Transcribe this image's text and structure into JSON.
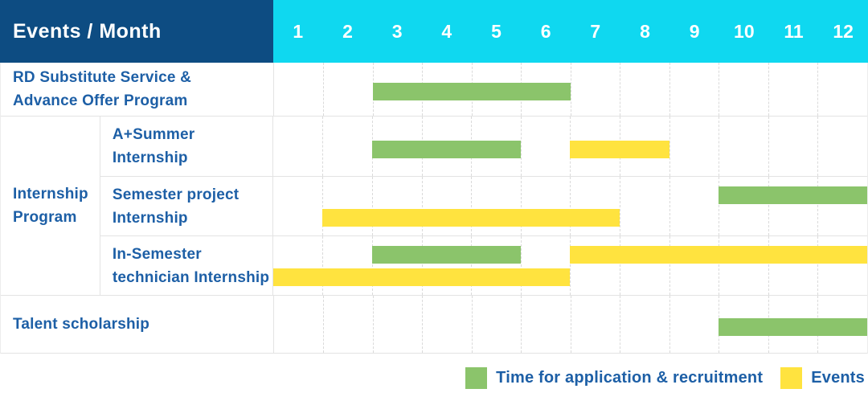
{
  "header": {
    "title": "Events / Month",
    "months": [
      "1",
      "2",
      "3",
      "4",
      "5",
      "6",
      "7",
      "8",
      "9",
      "10",
      "11",
      "12"
    ]
  },
  "colors": {
    "header_navy": "#0D4C82",
    "header_cyan": "#0FD8F0",
    "bar_green": "#8BC46B",
    "bar_yellow": "#FFE33F",
    "label_blue": "#1D5FA6",
    "grid_line": "#E3E3E3"
  },
  "chart_data": {
    "type": "bar",
    "subtype": "gantt-schedule",
    "title": "Events / Month",
    "xlabel": "Month",
    "x_ticks": [
      "1",
      "2",
      "3",
      "4",
      "5",
      "6",
      "7",
      "8",
      "9",
      "10",
      "11",
      "12"
    ],
    "x_range": [
      1,
      12
    ],
    "legend_position": "bottom-right",
    "grid": "dashed-vertical",
    "series_colors": {
      "Time for application & recruitment": "#8BC46B",
      "Events": "#FFE33F"
    },
    "group_label": {
      "label": "Internship Program",
      "label_lines": [
        "Internship",
        "Program"
      ]
    },
    "rows": [
      {
        "group": null,
        "label": "RD Substitute Service & Advance Offer Program",
        "label_lines": [
          "RD Substitute Service &",
          "Advance Offer Program"
        ],
        "bars": [
          {
            "series": "Time for application & recruitment",
            "color_key": "green",
            "start_month": 3,
            "end_month": 6,
            "track": "single"
          }
        ]
      },
      {
        "group": "Internship Program",
        "label": "A+Summer Internship",
        "label_lines": [
          "A+Summer",
          "Internship"
        ],
        "bars": [
          {
            "series": "Time for application & recruitment",
            "color_key": "green",
            "start_month": 3,
            "end_month": 5,
            "track": "single"
          },
          {
            "series": "Events",
            "color_key": "yellow",
            "start_month": 7,
            "end_month": 8,
            "track": "single"
          }
        ]
      },
      {
        "group": "Internship Program",
        "label": "Semester project Internship",
        "label_lines": [
          "Semester project",
          "Internship"
        ],
        "bars": [
          {
            "series": "Time for application & recruitment",
            "color_key": "green",
            "start_month": 10,
            "end_month": 12,
            "track": "upper"
          },
          {
            "series": "Events",
            "color_key": "yellow",
            "start_month": 2,
            "end_month": 7,
            "track": "lower"
          }
        ]
      },
      {
        "group": "Internship Program",
        "label": "In-Semester technician Internship",
        "label_lines": [
          "In-Semester",
          "technician Internship"
        ],
        "bars": [
          {
            "series": "Time for application & recruitment",
            "color_key": "green",
            "start_month": 3,
            "end_month": 5,
            "track": "upper"
          },
          {
            "series": "Events",
            "color_key": "yellow",
            "start_month": 7,
            "end_month": 12,
            "track": "upper"
          },
          {
            "series": "Events",
            "color_key": "yellow",
            "start_month": 1,
            "end_month": 6,
            "track": "lower"
          }
        ]
      },
      {
        "group": null,
        "label": "Talent scholarship",
        "label_lines": [
          "Talent scholarship"
        ],
        "bars": [
          {
            "series": "Time for application & recruitment",
            "color_key": "green",
            "start_month": 10,
            "end_month": 12,
            "track": "single"
          }
        ]
      }
    ],
    "legend": [
      {
        "label": "Time for application & recruitment",
        "color_key": "green"
      },
      {
        "label": "Events",
        "color_key": "yellow"
      }
    ]
  }
}
